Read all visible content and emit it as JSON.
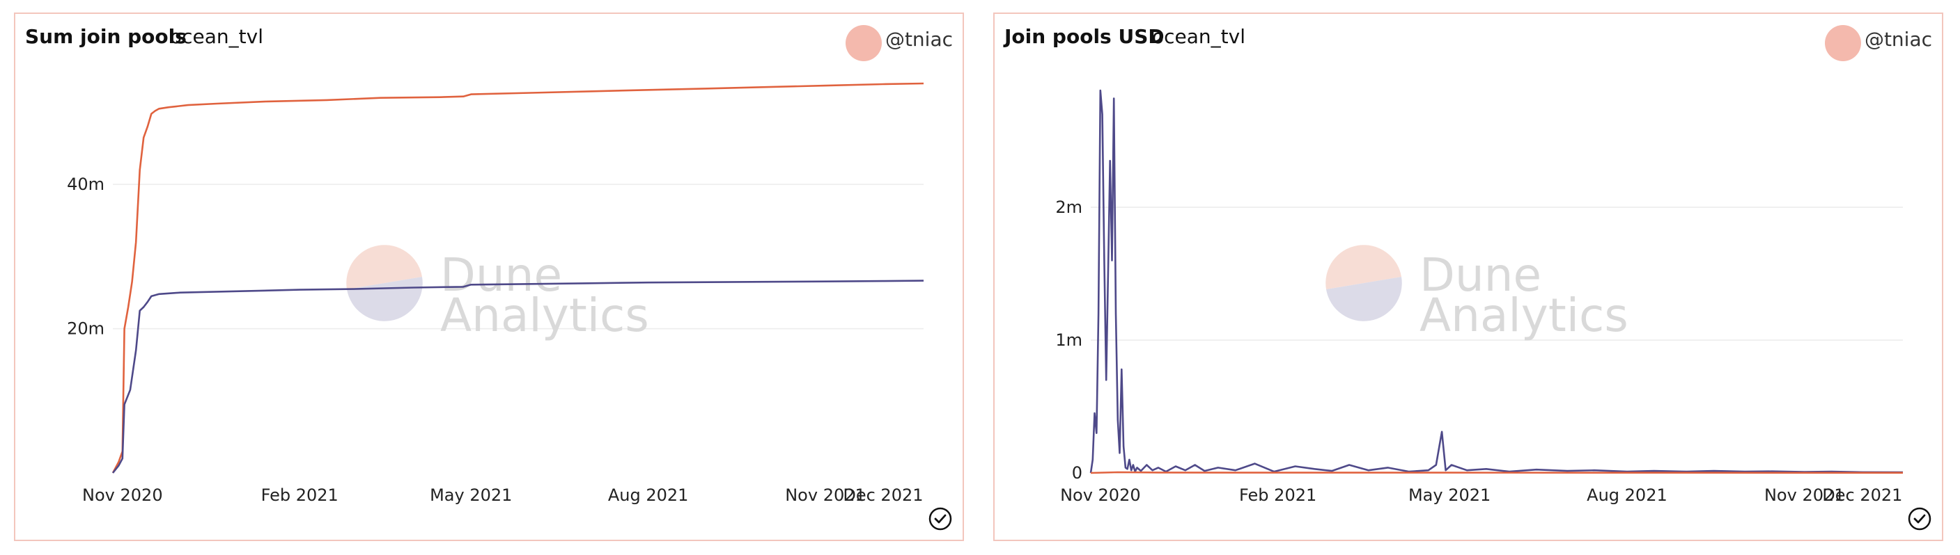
{
  "panels": [
    {
      "title": "Sum join pools",
      "query": "ocean_tvl",
      "author": "@tniac"
    },
    {
      "title": "Join pools USD",
      "query": "ocean_tvl",
      "author": "@tniac"
    }
  ],
  "watermark": {
    "line1": "Dune",
    "line2": "Analytics"
  },
  "colors": {
    "orange": "#e0623e",
    "purple": "#4e4989",
    "grid": "#ececec",
    "border": "#f3c6bd"
  },
  "chart_data": [
    {
      "type": "line",
      "title": "Sum join pools",
      "x_ticks": [
        "Nov 2020",
        "Feb 2021",
        "May 2021",
        "Aug 2021",
        "Nov 2021",
        "Dec 2021"
      ],
      "y_ticks": [
        "20m",
        "40m"
      ],
      "y_tick_values": [
        20000000,
        40000000
      ],
      "ylim": [
        0,
        54000000
      ],
      "xlim": [
        "2020-10-27",
        "2021-12-22"
      ],
      "grid": true,
      "series": [
        {
          "color": "#e0623e",
          "x": [
            "2020-10-27",
            "2020-10-30",
            "2020-11-01",
            "2020-11-02",
            "2020-11-04",
            "2020-11-06",
            "2020-11-08",
            "2020-11-10",
            "2020-11-12",
            "2020-11-14",
            "2020-11-16",
            "2020-11-18",
            "2020-11-20",
            "2020-11-25",
            "2020-12-05",
            "2020-12-20",
            "2021-01-15",
            "2021-02-15",
            "2021-03-15",
            "2021-04-15",
            "2021-04-27",
            "2021-05-01",
            "2021-06-01",
            "2021-07-01",
            "2021-08-01",
            "2021-09-01",
            "2021-10-01",
            "2021-11-01",
            "2021-12-01",
            "2021-12-22"
          ],
          "y": [
            0,
            1500000,
            3000000,
            20000000,
            23000000,
            26500000,
            32000000,
            42000000,
            46500000,
            48000000,
            49800000,
            50200000,
            50500000,
            50700000,
            51000000,
            51200000,
            51500000,
            51700000,
            52000000,
            52100000,
            52200000,
            52500000,
            52700000,
            52900000,
            53100000,
            53300000,
            53500000,
            53700000,
            53900000,
            54000000
          ]
        },
        {
          "color": "#4e4989",
          "x": [
            "2020-10-27",
            "2020-10-30",
            "2020-11-01",
            "2020-11-02",
            "2020-11-05",
            "2020-11-08",
            "2020-11-10",
            "2020-11-12",
            "2020-11-14",
            "2020-11-16",
            "2020-11-20",
            "2020-12-01",
            "2021-01-01",
            "2021-02-01",
            "2021-03-01",
            "2021-04-01",
            "2021-04-27",
            "2021-05-01",
            "2021-06-01",
            "2021-07-01",
            "2021-08-01",
            "2021-09-01",
            "2021-10-01",
            "2021-11-01",
            "2021-12-01",
            "2021-12-22"
          ],
          "y": [
            0,
            1000000,
            2000000,
            9500000,
            11500000,
            17000000,
            22500000,
            23000000,
            23700000,
            24500000,
            24800000,
            25000000,
            25200000,
            25400000,
            25500000,
            25700000,
            25800000,
            26100000,
            26200000,
            26300000,
            26400000,
            26450000,
            26500000,
            26550000,
            26600000,
            26650000
          ]
        }
      ]
    },
    {
      "type": "line",
      "title": "Join pools USD",
      "x_ticks": [
        "Nov 2020",
        "Feb 2021",
        "May 2021",
        "Aug 2021",
        "Nov 2021",
        "Dec 2021"
      ],
      "y_ticks": [
        "0",
        "1m",
        "2m"
      ],
      "y_tick_values": [
        0,
        1000000,
        2000000
      ],
      "ylim": [
        0,
        2880000
      ],
      "xlim": [
        "2020-10-27",
        "2021-12-22"
      ],
      "grid": true,
      "series": [
        {
          "color": "#4e4989",
          "x": [
            "2020-10-27",
            "2020-10-28",
            "2020-10-29",
            "2020-10-30",
            "2020-10-31",
            "2020-11-01",
            "2020-11-02",
            "2020-11-03",
            "2020-11-04",
            "2020-11-05",
            "2020-11-06",
            "2020-11-07",
            "2020-11-08",
            "2020-11-09",
            "2020-11-10",
            "2020-11-11",
            "2020-11-12",
            "2020-11-13",
            "2020-11-14",
            "2020-11-15",
            "2020-11-16",
            "2020-11-17",
            "2020-11-18",
            "2020-11-19",
            "2020-11-20",
            "2020-11-22",
            "2020-11-25",
            "2020-11-28",
            "2020-12-01",
            "2020-12-05",
            "2020-12-10",
            "2020-12-15",
            "2020-12-20",
            "2020-12-25",
            "2021-01-01",
            "2021-01-10",
            "2021-01-20",
            "2021-01-30",
            "2021-02-10",
            "2021-02-20",
            "2021-03-01",
            "2021-03-10",
            "2021-03-20",
            "2021-03-30",
            "2021-04-10",
            "2021-04-20",
            "2021-04-24",
            "2021-04-27",
            "2021-04-29",
            "2021-05-02",
            "2021-05-10",
            "2021-05-20",
            "2021-06-01",
            "2021-06-15",
            "2021-07-01",
            "2021-07-15",
            "2021-08-01",
            "2021-08-15",
            "2021-09-01",
            "2021-09-15",
            "2021-10-01",
            "2021-10-15",
            "2021-11-01",
            "2021-11-15",
            "2021-12-01",
            "2021-12-22"
          ],
          "y": [
            0,
            100000,
            450000,
            300000,
            1200000,
            2880000,
            2700000,
            1600000,
            700000,
            1500000,
            2350000,
            1600000,
            2820000,
            1200000,
            400000,
            150000,
            780000,
            200000,
            40000,
            30000,
            100000,
            20000,
            60000,
            10000,
            40000,
            15000,
            60000,
            20000,
            40000,
            10000,
            50000,
            20000,
            60000,
            15000,
            40000,
            20000,
            70000,
            10000,
            50000,
            30000,
            15000,
            60000,
            20000,
            40000,
            10000,
            20000,
            60000,
            310000,
            20000,
            60000,
            20000,
            30000,
            10000,
            25000,
            15000,
            20000,
            10000,
            15000,
            10000,
            15000,
            10000,
            12000,
            8000,
            10000,
            6000,
            5000
          ]
        },
        {
          "color": "#e0623e",
          "x": [
            "2020-10-27",
            "2020-11-10",
            "2020-12-01",
            "2021-02-01",
            "2021-05-01",
            "2021-08-01",
            "2021-11-01",
            "2021-12-22"
          ],
          "y": [
            0,
            5000,
            3000,
            2000,
            2000,
            1500,
            1000,
            1000
          ]
        }
      ]
    }
  ]
}
